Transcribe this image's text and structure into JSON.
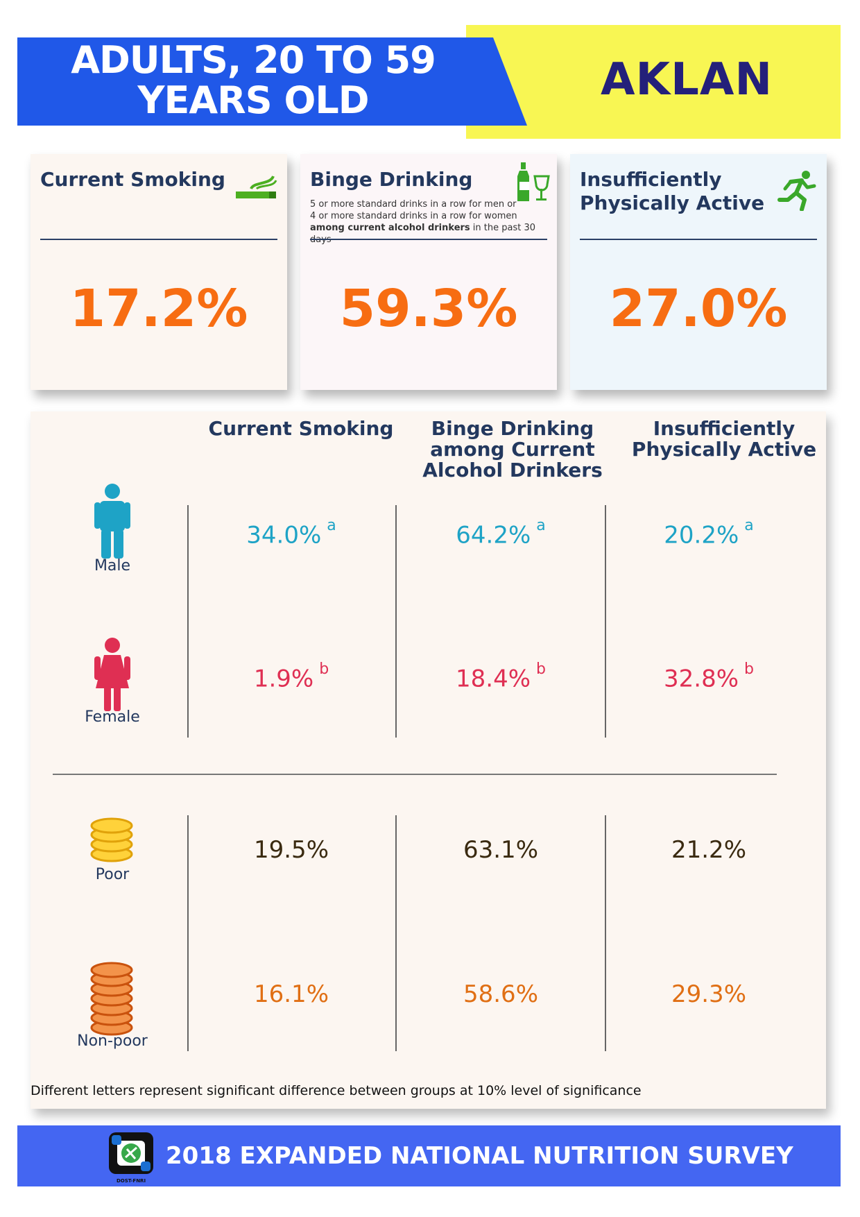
{
  "header": {
    "title_line1": "ADULTS, 20 TO 59",
    "title_line2": "YEARS OLD",
    "region": "AKLAN"
  },
  "summary": [
    {
      "title_line1": "Current Smoking",
      "title_line2": "",
      "value": "17.2%",
      "icon": "cigarette-icon",
      "bg": "#fcf6f1"
    },
    {
      "title_line1": "Binge Drinking",
      "title_line2": "",
      "value": "59.3%",
      "icon": "bottle-glass-icon",
      "bg": "#fcf6f8",
      "note_line1": "5 or more standard drinks in a row for men or",
      "note_line2": "4 or more standard drinks in a row for women",
      "note_bold": "among current alcohol drinkers",
      "note_rest": " in the past 30 days"
    },
    {
      "title_line1": "Insufficiently",
      "title_line2": "Physically Active",
      "value": "27.0%",
      "icon": "running-person-icon",
      "bg": "#eef6fb"
    }
  ],
  "table": {
    "columns": [
      {
        "line1": "Current Smoking",
        "line2": "",
        "line3": ""
      },
      {
        "line1": "Binge Drinking",
        "line2": "among Current",
        "line3": "Alcohol Drinkers"
      },
      {
        "line1": "Insufficiently",
        "line2": "Physically Active",
        "line3": ""
      }
    ],
    "rows": [
      {
        "label": "Male",
        "icon": "male-icon",
        "values": [
          "34.0%",
          "64.2%",
          "20.2%"
        ],
        "marks": [
          "a",
          "a",
          "a"
        ]
      },
      {
        "label": "Female",
        "icon": "female-icon",
        "values": [
          "1.9%",
          "18.4%",
          "32.8%"
        ],
        "marks": [
          "b",
          "b",
          "b"
        ]
      },
      {
        "label": "Poor",
        "icon": "coins-small-stack-icon",
        "values": [
          "19.5%",
          "63.1%",
          "21.2%"
        ]
      },
      {
        "label": "Non-poor",
        "icon": "coins-tall-stack-icon",
        "values": [
          "16.1%",
          "58.6%",
          "29.3%"
        ]
      }
    ],
    "footnote": "Different letters represent significant difference between groups at 10% level of significance"
  },
  "footer": {
    "title": "2018 EXPANDED NATIONAL NUTRITION SURVEY",
    "logo_caption": "DOST-FNRI"
  },
  "colors": {
    "header_blue": "#2058e8",
    "header_yellow": "#f8f653",
    "accent_orange": "#f76d12",
    "male": "#1ea3c6",
    "female": "#df2f53",
    "footer_blue": "#4466f2"
  }
}
